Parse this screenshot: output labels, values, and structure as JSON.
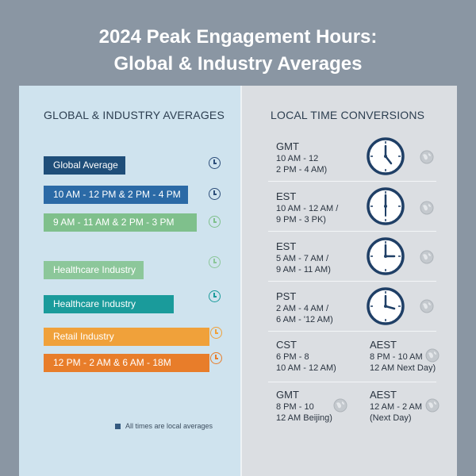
{
  "title": {
    "line1": "2024 Peak Engagement Hours:",
    "line2": "Global & Industry Averages"
  },
  "left": {
    "heading": "GLOBAL & INDUSTRY AVERAGES",
    "bars": [
      {
        "label": "Global Average",
        "color": "#1f4e79"
      },
      {
        "label": "10 AM - 12 PM & 2 PM - 4 PM",
        "color": "#2b6aa6"
      },
      {
        "label": "9 AM - 11 AM & 2 PM - 3 PM",
        "color": "#7fc08c"
      },
      {
        "label": "Healthcare Industry",
        "color": "#8cc79a"
      },
      {
        "label": "Healthcare Industry",
        "color": "#1a9b9b"
      },
      {
        "label": "Retail Industry",
        "color": "#f0a13a"
      },
      {
        "label": "12 PM - 2 AM & 6 AM - 18M",
        "color": "#e87d2a"
      }
    ],
    "footnote": "All times are local averages"
  },
  "right": {
    "heading": "LOCAL TIME CONVERSIONS",
    "zones": [
      {
        "code": "GMT",
        "line1": "10 AM - 12",
        "line2": "2 PM - 4 AM)"
      },
      {
        "code": "EST",
        "line1": "10 AM - 12 AM /",
        "line2": "9 PM - 3 PK)"
      },
      {
        "code": "EST",
        "line1": "5 AM - 7 AM /",
        "line2": "9 AM - 11 AM)"
      },
      {
        "code": "PST",
        "line1": "2 AM - 4 AM /",
        "line2": "6 AM - '12 AM)"
      },
      {
        "code": "CST",
        "line1": "6 PM - 8",
        "line2": "10 AM - 12 AM)"
      },
      {
        "code": "AEST",
        "line1": "8 PM - 10 AM",
        "line2": "12 AM Next Day)"
      },
      {
        "code": "GMT",
        "line1": "8 PM - 10",
        "line2": "12 AM Beijing)"
      },
      {
        "code": "AEST",
        "line1": "12 AM - 2 AM",
        "line2": "(Next Day)"
      }
    ]
  }
}
